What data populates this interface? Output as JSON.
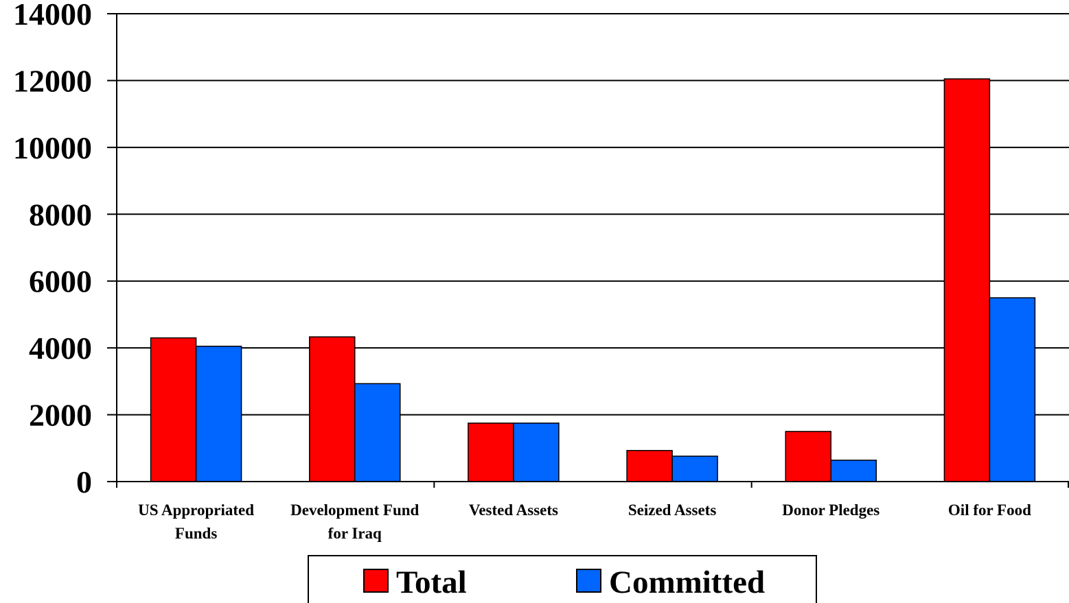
{
  "chart_data": {
    "type": "bar",
    "title": "",
    "xlabel": "",
    "ylabel": "",
    "ylim": [
      0,
      14000
    ],
    "yticks": [
      "0",
      "2000",
      "4000",
      "6000",
      "8000",
      "10000",
      "12000",
      "14000"
    ],
    "categories": [
      [
        "US Appropriated",
        "Funds"
      ],
      [
        "Development Fund",
        "for Iraq"
      ],
      [
        "Vested Assets"
      ],
      [
        "Seized Assets"
      ],
      [
        "Donor Pledges"
      ],
      [
        "Oil for Food"
      ]
    ],
    "series": [
      {
        "name": "Total",
        "color": "#ff0000",
        "values": [
          4300,
          4330,
          1750,
          930,
          1500,
          12050
        ]
      },
      {
        "name": "Committed",
        "color": "#0066ff",
        "values": [
          4050,
          2930,
          1750,
          760,
          640,
          5500
        ]
      }
    ],
    "grid": true,
    "legend_position": "bottom-center"
  }
}
